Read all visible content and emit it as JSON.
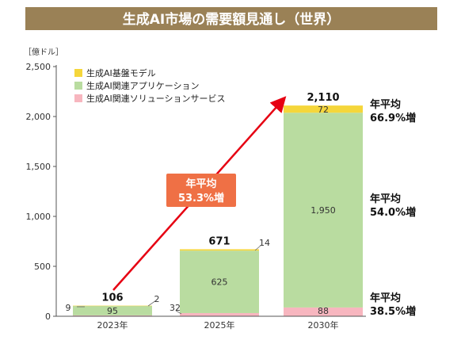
{
  "chart_data": {
    "type": "bar",
    "stacked": true,
    "title": "生成AI市場の需要額見通し（世界）",
    "unit": "［億ドル］",
    "categories": [
      "2023年",
      "2025年",
      "2030年"
    ],
    "ylim": [
      0,
      2500
    ],
    "yticks": [
      "0",
      "500",
      "1,000",
      "1,500",
      "2,000",
      "2,500"
    ],
    "series": [
      {
        "name": "生成AI関連ソリューションサービス",
        "color": "#f7b6bf",
        "values": [
          9,
          32,
          88
        ],
        "labels": [
          "9",
          "32",
          "88"
        ]
      },
      {
        "name": "生成AI関連アプリケーション",
        "color": "#b9dca0",
        "values": [
          95,
          625,
          1950
        ],
        "labels": [
          "95",
          "625",
          "1,950"
        ]
      },
      {
        "name": "生成AI基盤モデル",
        "color": "#f5d63b",
        "values": [
          2,
          14,
          72
        ],
        "labels": [
          "2",
          "14",
          "72"
        ]
      }
    ],
    "legend_order": [
      2,
      1,
      0
    ],
    "totals": [
      "106",
      "671",
      "2,110"
    ],
    "growth_rates": [
      {
        "series": "生成AI基盤モデル",
        "line1": "年平均",
        "line2": "66.9%増"
      },
      {
        "series": "生成AI関連アプリケーション",
        "line1": "年平均",
        "line2": "54.0%増"
      },
      {
        "series": "生成AI関連ソリューションサービス",
        "line1": "年平均",
        "line2": "38.5%増"
      }
    ],
    "callout": {
      "line1": "年平均",
      "line2": "53.3%増"
    },
    "colors": {
      "title_bg": "#9a8156",
      "arrow": "#e60012",
      "callout_bg": "#ef7045",
      "axis": "#555555"
    }
  }
}
